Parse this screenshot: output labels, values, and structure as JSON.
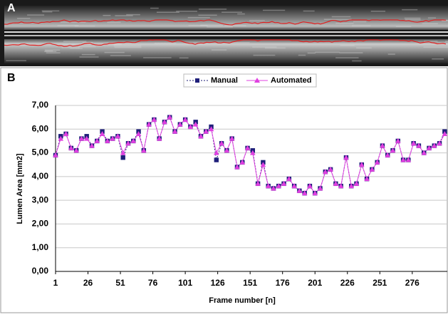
{
  "panel_labels": [
    "A",
    "B"
  ],
  "chart_data": {
    "type": "line",
    "xlabel": "Frame number [n]",
    "ylabel": "Lumen Area [mm2]",
    "x": [
      1,
      5,
      9,
      13,
      17,
      21,
      25,
      29,
      33,
      37,
      41,
      45,
      49,
      53,
      57,
      61,
      65,
      69,
      73,
      77,
      81,
      85,
      89,
      93,
      97,
      101,
      105,
      109,
      113,
      117,
      121,
      125,
      129,
      133,
      137,
      141,
      145,
      149,
      153,
      157,
      161,
      165,
      169,
      173,
      177,
      181,
      185,
      189,
      193,
      197,
      201,
      205,
      209,
      213,
      217,
      221,
      225,
      229,
      233,
      237,
      241,
      245,
      249,
      253,
      257,
      261,
      265,
      269,
      273,
      277,
      281,
      285,
      289,
      293,
      297,
      301
    ],
    "series": [
      {
        "name": "Manual",
        "color": "#1f1f7a",
        "marker": "square",
        "dash": true,
        "values": [
          4.9,
          5.7,
          5.8,
          5.2,
          5.1,
          5.6,
          5.7,
          5.3,
          5.5,
          5.9,
          5.5,
          5.6,
          5.7,
          4.8,
          5.4,
          5.5,
          5.9,
          5.1,
          6.2,
          6.4,
          5.6,
          6.3,
          6.5,
          5.9,
          6.2,
          6.4,
          6.1,
          6.3,
          5.7,
          5.9,
          6.1,
          4.7,
          5.4,
          5.1,
          5.6,
          4.4,
          4.6,
          5.2,
          5.1,
          3.7,
          4.6,
          3.6,
          3.5,
          3.6,
          3.7,
          3.9,
          3.6,
          3.4,
          3.3,
          3.6,
          3.3,
          3.5,
          4.2,
          4.3,
          3.7,
          3.6,
          4.8,
          3.6,
          3.7,
          4.5,
          3.9,
          4.3,
          4.6,
          5.3,
          4.9,
          5.1,
          5.5,
          4.7,
          4.7,
          5.4,
          5.3,
          5.0,
          5.2,
          5.3,
          5.4,
          5.9
        ]
      },
      {
        "name": "Automated",
        "color": "#e040e0",
        "marker": "triangle",
        "dash": false,
        "values": [
          4.9,
          5.6,
          5.8,
          5.2,
          5.1,
          5.6,
          5.6,
          5.3,
          5.5,
          5.8,
          5.5,
          5.6,
          5.7,
          5.0,
          5.4,
          5.5,
          5.8,
          5.1,
          6.2,
          6.4,
          5.6,
          6.3,
          6.5,
          5.9,
          6.2,
          6.4,
          6.1,
          6.2,
          5.7,
          5.9,
          6.0,
          5.0,
          5.4,
          5.1,
          5.6,
          4.4,
          4.6,
          5.2,
          5.0,
          3.7,
          4.5,
          3.6,
          3.5,
          3.6,
          3.7,
          3.9,
          3.6,
          3.4,
          3.3,
          3.6,
          3.3,
          3.5,
          4.2,
          4.3,
          3.7,
          3.6,
          4.8,
          3.6,
          3.7,
          4.5,
          3.9,
          4.3,
          4.6,
          5.3,
          4.9,
          5.1,
          5.5,
          4.7,
          4.7,
          5.4,
          5.3,
          5.0,
          5.2,
          5.3,
          5.4,
          5.8
        ]
      }
    ],
    "xlim": [
      1,
      303
    ],
    "xticks": [
      1,
      26,
      51,
      76,
      101,
      126,
      151,
      176,
      201,
      226,
      251,
      276
    ],
    "ylim": [
      0,
      7
    ],
    "yticks": [
      {
        "value": 0,
        "label": "0,00"
      },
      {
        "value": 1,
        "label": "1,00"
      },
      {
        "value": 2,
        "label": "2,00"
      },
      {
        "value": 3,
        "label": "3,00"
      },
      {
        "value": 4,
        "label": "4,00"
      },
      {
        "value": 5,
        "label": "5,00"
      },
      {
        "value": 6,
        "label": "6,00"
      },
      {
        "value": 7,
        "label": "7,00"
      }
    ],
    "grid": true,
    "legend": "top"
  }
}
